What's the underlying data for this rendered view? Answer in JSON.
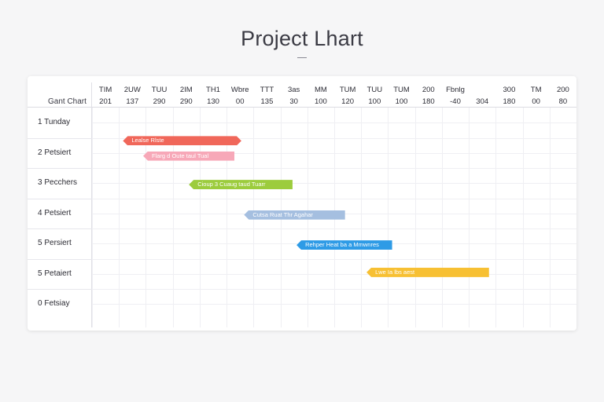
{
  "page": {
    "title": "Project Lhart"
  },
  "chart_data": {
    "type": "gantt",
    "corner_label": "Gant Chart",
    "columns": [
      {
        "top": "TIM",
        "bottom": "201"
      },
      {
        "top": "2UW",
        "bottom": "137"
      },
      {
        "top": "TUU",
        "bottom": "290"
      },
      {
        "top": "2IM",
        "bottom": "290"
      },
      {
        "top": "TH1",
        "bottom": "130"
      },
      {
        "top": "Wbre",
        "bottom": "00"
      },
      {
        "top": "TTT",
        "bottom": "135"
      },
      {
        "top": "3as",
        "bottom": "30"
      },
      {
        "top": "MM",
        "bottom": "100"
      },
      {
        "top": "TUM",
        "bottom": "120"
      },
      {
        "top": "TUU",
        "bottom": "100"
      },
      {
        "top": "TUM",
        "bottom": "100"
      },
      {
        "top": "200",
        "bottom": "180"
      },
      {
        "top": "Fbnlg",
        "bottom": "-40"
      },
      {
        "top": "",
        "bottom": "304"
      },
      {
        "top": "300",
        "bottom": "180"
      },
      {
        "top": "TM",
        "bottom": "00"
      },
      {
        "top": "200",
        "bottom": "80"
      }
    ],
    "rows": [
      {
        "label": "1 Tunday"
      },
      {
        "label": "2 Petsiert"
      },
      {
        "label": "3 Pecchers"
      },
      {
        "label": "4 Petsiert"
      },
      {
        "label": "5 Persiert"
      },
      {
        "label": "5 Petaiert"
      },
      {
        "label": "0 Fetsiay"
      }
    ],
    "tasks": [
      {
        "label": "Lealse Rlste",
        "color": "#f0675a",
        "start": 1.15,
        "end": 5.55,
        "row_pos": 1.1,
        "shape": "both"
      },
      {
        "label": "Flarg d Oute taul Tual",
        "color": "#f7a8b8",
        "start": 1.9,
        "end": 5.3,
        "row_pos": 1.6,
        "shape": "left"
      },
      {
        "label": "Cioup 3 Cuaug taud Tuarr",
        "color": "#9ccc3d",
        "start": 3.6,
        "end": 7.45,
        "row_pos": 2.55,
        "shape": "left"
      },
      {
        "label": "Cutsa Ruat Thr Agahar",
        "color": "#a5bfe0",
        "start": 5.65,
        "end": 9.4,
        "row_pos": 3.55,
        "shape": "left"
      },
      {
        "label": "Rehper Heat ba a Mmwnres",
        "color": "#2e9be6",
        "start": 7.6,
        "end": 11.15,
        "row_pos": 4.55,
        "shape": "left"
      },
      {
        "label": "Lwe Ia lbs aest",
        "color": "#f7c033",
        "start": 10.2,
        "end": 14.75,
        "row_pos": 5.45,
        "shape": "left"
      }
    ]
  }
}
